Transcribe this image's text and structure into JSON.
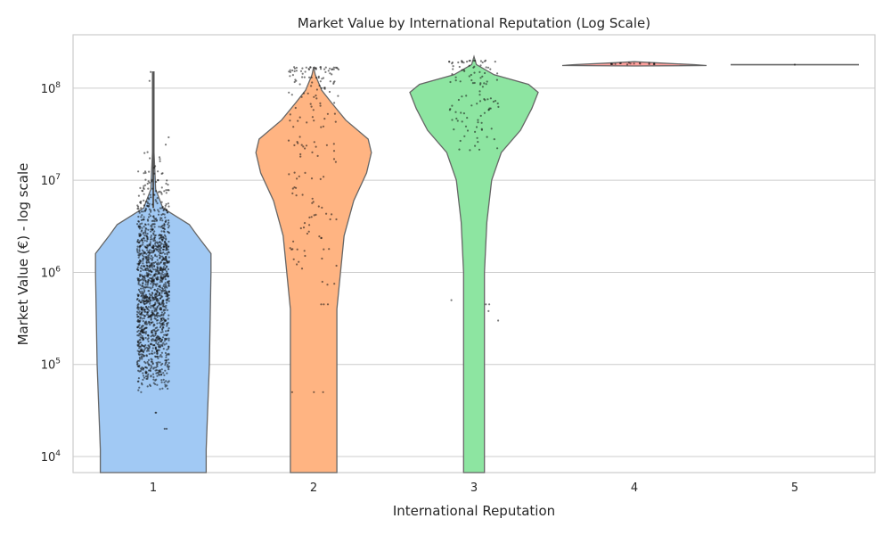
{
  "chart_data": {
    "type": "violin",
    "title": "Market Value by International Reputation (Log Scale)",
    "xlabel": "International Reputation",
    "ylabel": "Market Value (€) - log scale",
    "yscale": "log",
    "ylim": [
      6700,
      380000000
    ],
    "grid": true,
    "categories": [
      "1",
      "2",
      "3",
      "4",
      "5"
    ],
    "y_ticks": [
      {
        "value": 10000,
        "base": "10",
        "exp": "4"
      },
      {
        "value": 100000,
        "base": "10",
        "exp": "5"
      },
      {
        "value": 1000000,
        "base": "10",
        "exp": "6"
      },
      {
        "value": 10000000,
        "base": "10",
        "exp": "7"
      },
      {
        "value": 100000000,
        "base": "10",
        "exp": "8"
      }
    ],
    "series": [
      {
        "category": "1",
        "color": "#a1c9f4",
        "violin_profile": [
          {
            "v": 6700,
            "w": 0.66
          },
          {
            "v": 12000,
            "w": 0.66
          },
          {
            "v": 100000,
            "w": 0.7
          },
          {
            "v": 1000000,
            "w": 0.72
          },
          {
            "v": 1600000,
            "w": 0.72
          },
          {
            "v": 2500000,
            "w": 0.55
          },
          {
            "v": 3300000,
            "w": 0.45
          },
          {
            "v": 5000000,
            "w": 0.12
          },
          {
            "v": 8000000,
            "w": 0.03
          },
          {
            "v": 20000000,
            "w": 0.01
          },
          {
            "v": 150000000,
            "w": 0.01
          }
        ],
        "points_summary": {
          "min": 20000,
          "max": 150000000,
          "dense_range": [
            50000,
            50000000
          ]
        }
      },
      {
        "category": "2",
        "color": "#ffb482",
        "violin_profile": [
          {
            "v": 6700,
            "w": 0.29
          },
          {
            "v": 400000,
            "w": 0.29
          },
          {
            "v": 2500000,
            "w": 0.38
          },
          {
            "v": 6000000,
            "w": 0.5
          },
          {
            "v": 12000000,
            "w": 0.66
          },
          {
            "v": 20000000,
            "w": 0.72
          },
          {
            "v": 28000000,
            "w": 0.68
          },
          {
            "v": 45000000,
            "w": 0.4
          },
          {
            "v": 70000000,
            "w": 0.22
          },
          {
            "v": 95000000,
            "w": 0.1
          },
          {
            "v": 140000000,
            "w": 0.02
          },
          {
            "v": 170000000,
            "w": 0.0
          }
        ],
        "points_summary": {
          "min": 50000,
          "max": 170000000
        }
      },
      {
        "category": "3",
        "color": "#8de5a1",
        "violin_profile": [
          {
            "v": 6700,
            "w": 0.13
          },
          {
            "v": 1000000,
            "w": 0.13
          },
          {
            "v": 3500000,
            "w": 0.16
          },
          {
            "v": 10000000,
            "w": 0.22
          },
          {
            "v": 20000000,
            "w": 0.34
          },
          {
            "v": 35000000,
            "w": 0.58
          },
          {
            "v": 60000000,
            "w": 0.72
          },
          {
            "v": 90000000,
            "w": 0.8
          },
          {
            "v": 110000000,
            "w": 0.68
          },
          {
            "v": 140000000,
            "w": 0.25
          },
          {
            "v": 180000000,
            "w": 0.03
          },
          {
            "v": 220000000,
            "w": 0.0
          }
        ],
        "points_summary": {
          "min": 300000,
          "max": 200000000
        }
      },
      {
        "category": "4",
        "color": "#ff9f9b",
        "violin_profile": [
          {
            "v": 174000000,
            "w": 0.0
          },
          {
            "v": 176000000,
            "w": 0.9
          },
          {
            "v": 180000000,
            "w": 0.75
          },
          {
            "v": 187000000,
            "w": 0.35
          },
          {
            "v": 194000000,
            "w": 0.0
          }
        ],
        "points_summary": {
          "min": 180000000,
          "max": 190000000
        }
      },
      {
        "category": "5",
        "color": "#d0bbff",
        "violin_profile": [],
        "points_summary": {
          "min": 180000000,
          "max": 180000000
        }
      }
    ]
  }
}
